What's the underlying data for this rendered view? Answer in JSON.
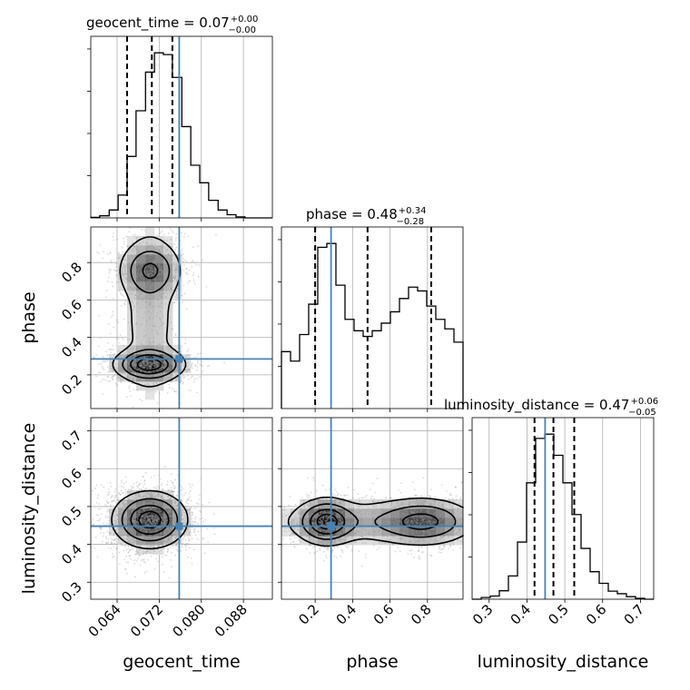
{
  "colors": {
    "truth": "#4682b4",
    "hist": "#000000",
    "grid": "#b0b0b0",
    "scatter": "#999999"
  },
  "chart_data": {
    "type": "corner",
    "grid": true,
    "parameters": [
      "geocent_time",
      "phase",
      "luminosity_distance"
    ],
    "truths": {
      "geocent_time": 0.0758,
      "phase": 0.285,
      "luminosity_distance": 0.448
    },
    "titles": [
      {
        "param": "geocent_time",
        "label": "geocent_time = 0.07",
        "sup": "+0.00",
        "sub": "−0.00"
      },
      {
        "param": "phase",
        "label": "phase = 0.48",
        "sup": "+0.34",
        "sub": "−0.28"
      },
      {
        "param": "luminosity_distance",
        "label": "luminosity_distance = 0.47",
        "sup": "+0.06",
        "sub": "−0.05"
      }
    ],
    "axis_labels": {
      "geocent_time": "geocent_time",
      "phase": "phase",
      "luminosity_distance": "luminosity_distance"
    },
    "ranges": {
      "geocent_time": [
        0.059,
        0.0935
      ],
      "phase": [
        0.02,
        0.99
      ],
      "luminosity_distance": [
        0.255,
        0.735
      ]
    },
    "ticks": {
      "geocent_time": [
        {
          "v": 0.064,
          "label": "0.064"
        },
        {
          "v": 0.072,
          "label": "0.072"
        },
        {
          "v": 0.08,
          "label": "0.080"
        },
        {
          "v": 0.088,
          "label": "0.088"
        }
      ],
      "phase": [
        {
          "v": 0.2,
          "label": "0.2"
        },
        {
          "v": 0.4,
          "label": "0.4"
        },
        {
          "v": 0.6,
          "label": "0.6"
        },
        {
          "v": 0.8,
          "label": "0.8"
        }
      ],
      "luminosity_distance": [
        {
          "v": 0.3,
          "label": "0.3"
        },
        {
          "v": 0.4,
          "label": "0.4"
        },
        {
          "v": 0.5,
          "label": "0.5"
        },
        {
          "v": 0.6,
          "label": "0.6"
        },
        {
          "v": 0.7,
          "label": "0.7"
        }
      ]
    },
    "histograms": {
      "geocent_time": {
        "edges": [
          0.059,
          0.0607,
          0.0625,
          0.0642,
          0.0659,
          0.0676,
          0.0694,
          0.0711,
          0.0728,
          0.0745,
          0.0763,
          0.078,
          0.0797,
          0.0814,
          0.0832,
          0.0849,
          0.0866,
          0.0883,
          0.0901,
          0.0918,
          0.0935
        ],
        "counts": [
          0.3,
          1.2,
          4.5,
          13,
          35,
          61,
          83,
          94,
          93,
          80,
          52,
          30,
          20,
          10,
          4.5,
          1.8,
          0.6,
          0,
          0,
          0
        ],
        "quantiles": [
          0.0659,
          0.0706,
          0.0745
        ]
      },
      "phase": {
        "edges": [
          0.02,
          0.0685,
          0.117,
          0.1655,
          0.214,
          0.2625,
          0.311,
          0.3595,
          0.408,
          0.4565,
          0.505,
          0.5535,
          0.602,
          0.6505,
          0.699,
          0.7475,
          0.796,
          0.8445,
          0.893,
          0.9415,
          0.99
        ],
        "counts": [
          30,
          25,
          39,
          55,
          85,
          87,
          65,
          47,
          41,
          38,
          41,
          45,
          51,
          58,
          64,
          62,
          54,
          47,
          42,
          35
        ],
        "quantiles": [
          0.2,
          0.48,
          0.82
        ]
      },
      "luminosity_distance": {
        "edges": [
          0.255,
          0.279,
          0.303,
          0.327,
          0.351,
          0.375,
          0.399,
          0.423,
          0.447,
          0.471,
          0.495,
          0.519,
          0.543,
          0.567,
          0.591,
          0.615,
          0.639,
          0.663,
          0.687,
          0.711,
          0.735
        ],
        "counts": [
          0,
          0.8,
          1.5,
          4,
          11,
          27,
          55,
          76,
          78,
          68,
          55,
          40,
          24,
          13,
          7.5,
          3.8,
          2.6,
          1.2,
          0.4,
          0
        ],
        "quantiles": [
          0.42,
          0.47,
          0.525
        ]
      }
    },
    "density_2d": [
      {
        "x": "geocent_time",
        "y": "phase",
        "modes": [
          {
            "cx": 0.0701,
            "cy": 0.255,
            "sx": 0.0033,
            "sy": 0.042,
            "w": 1.0
          },
          {
            "cx": 0.0703,
            "cy": 0.76,
            "sx": 0.003,
            "sy": 0.075,
            "w": 0.55
          },
          {
            "cx": 0.0702,
            "cy": 0.52,
            "sx": 0.0033,
            "sy": 0.32,
            "w": 0.22
          }
        ]
      },
      {
        "x": "geocent_time",
        "y": "luminosity_distance",
        "modes": [
          {
            "cx": 0.0702,
            "cy": 0.465,
            "sx": 0.0035,
            "sy": 0.037,
            "w": 1.0
          }
        ]
      },
      {
        "x": "phase",
        "y": "luminosity_distance",
        "modes": [
          {
            "cx": 0.26,
            "cy": 0.46,
            "sx": 0.075,
            "sy": 0.03,
            "w": 1.0
          },
          {
            "cx": 0.78,
            "cy": 0.46,
            "sx": 0.13,
            "sy": 0.032,
            "w": 0.65
          },
          {
            "cx": 0.5,
            "cy": 0.46,
            "sx": 0.32,
            "sy": 0.034,
            "w": 0.3
          }
        ]
      }
    ]
  }
}
